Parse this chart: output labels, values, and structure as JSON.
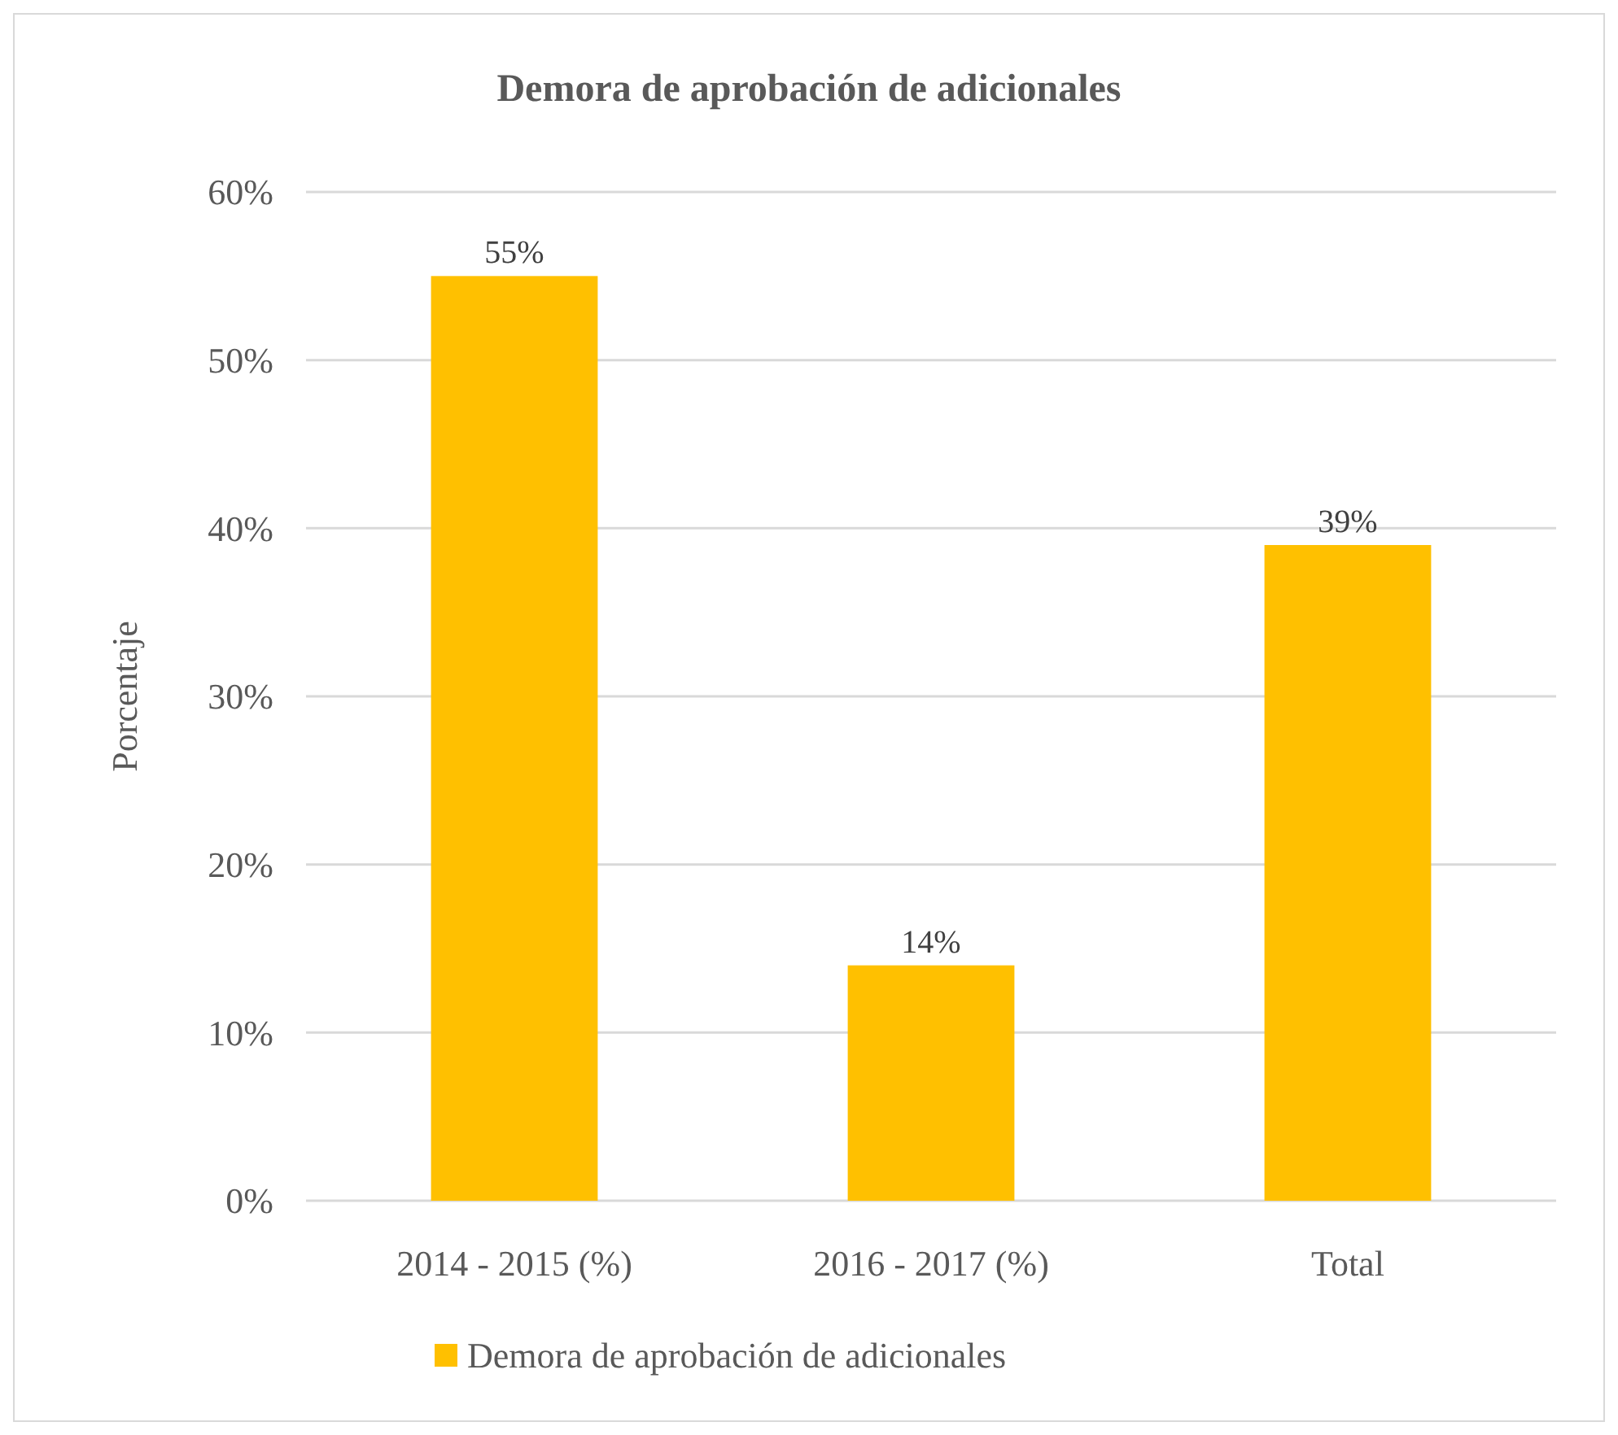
{
  "chart_data": {
    "type": "bar",
    "title": "Demora de aprobación de adicionales",
    "ylabel": "Porcentaje",
    "categories": [
      "2014 - 2015 (%)",
      "2016 - 2017 (%)",
      "Total"
    ],
    "series": [
      {
        "name": "Demora de aprobación de adicionales",
        "color": "#ffc000",
        "values": [
          55,
          14,
          39
        ]
      }
    ],
    "value_labels": [
      "55%",
      "14%",
      "39%"
    ],
    "ylim": [
      0,
      60
    ],
    "yticks": [
      {
        "value": 0,
        "label": "0%"
      },
      {
        "value": 10,
        "label": "10%"
      },
      {
        "value": 20,
        "label": "20%"
      },
      {
        "value": 30,
        "label": "30%"
      },
      {
        "value": 40,
        "label": "40%"
      },
      {
        "value": 50,
        "label": "50%"
      },
      {
        "value": 60,
        "label": "60%"
      }
    ],
    "grid": "y",
    "legend": "bottom"
  }
}
